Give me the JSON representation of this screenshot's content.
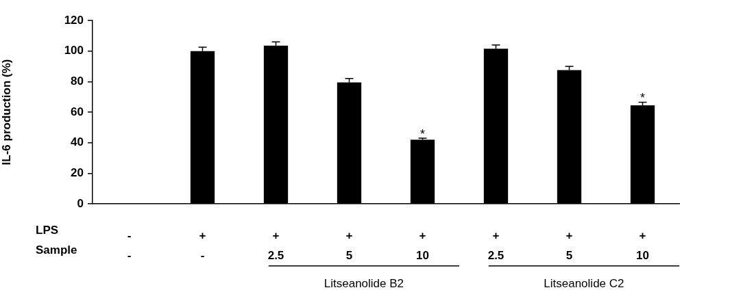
{
  "chart_data": {
    "type": "bar",
    "y_label": "IL-6 production (%)",
    "row_labels": [
      "LPS",
      "Sample"
    ],
    "categories": [
      [
        "-",
        "-"
      ],
      [
        "+",
        "-"
      ],
      [
        "+",
        "2.5"
      ],
      [
        "+",
        "5"
      ],
      [
        "+",
        "10"
      ],
      [
        "+",
        "2.5"
      ],
      [
        "+",
        "5"
      ],
      [
        "+",
        "10"
      ]
    ],
    "values": [
      0,
      100,
      103.5,
      79.5,
      42,
      101.5,
      87.5,
      64.5
    ],
    "errors": [
      0,
      2.5,
      2.5,
      2.5,
      1,
      2.5,
      2.5,
      2
    ],
    "color": "#000000",
    "ylim": [
      0,
      120
    ],
    "yticks": [
      0,
      20,
      40,
      60,
      80,
      100,
      120
    ],
    "grid": false,
    "groups": [
      {
        "label": "Litseanolide B2",
        "from": 2,
        "to": 4
      },
      {
        "label": "Litseanolide C2",
        "from": 5,
        "to": 7
      }
    ],
    "annotations": [
      {
        "index": 4,
        "text": "*"
      },
      {
        "index": 7,
        "text": "*"
      }
    ]
  }
}
